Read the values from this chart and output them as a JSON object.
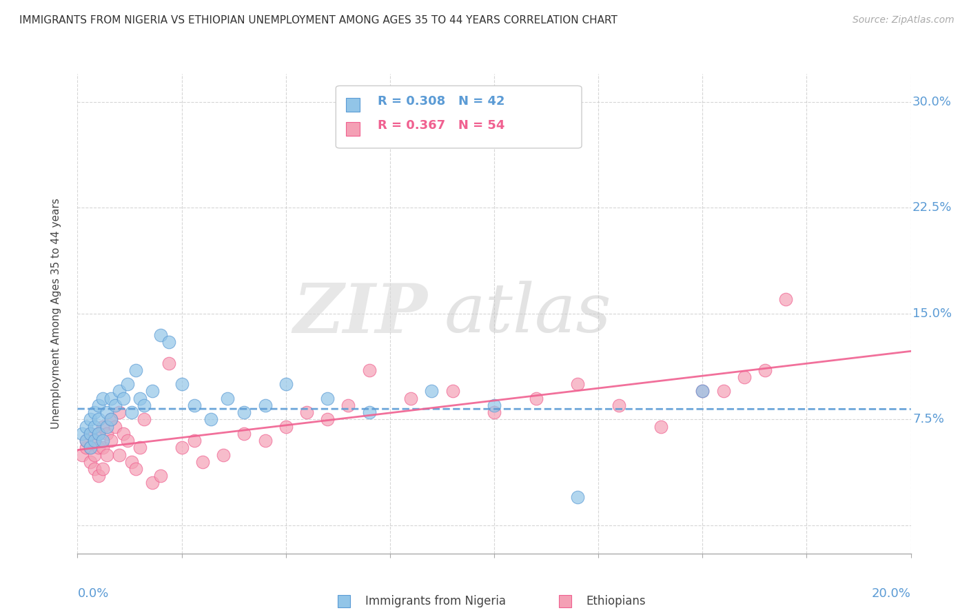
{
  "title": "IMMIGRANTS FROM NIGERIA VS ETHIOPIAN UNEMPLOYMENT AMONG AGES 35 TO 44 YEARS CORRELATION CHART",
  "source": "Source: ZipAtlas.com",
  "ylabel": "Unemployment Among Ages 35 to 44 years",
  "xlim": [
    0.0,
    0.2
  ],
  "ylim": [
    -0.02,
    0.32
  ],
  "yticks": [
    0.0,
    0.075,
    0.15,
    0.225,
    0.3
  ],
  "ytick_labels": [
    "",
    "7.5%",
    "15.0%",
    "22.5%",
    "30.0%"
  ],
  "legend_R_nigeria": "R = 0.308",
  "legend_N_nigeria": "N = 42",
  "legend_R_ethiopian": "R = 0.367",
  "legend_N_ethiopian": "N = 54",
  "nigeria_color": "#92C5E8",
  "ethiopian_color": "#F4A0B5",
  "nigeria_line_color": "#5B9BD5",
  "ethiopian_line_color": "#F06090",
  "nigeria_x": [
    0.001,
    0.002,
    0.002,
    0.003,
    0.003,
    0.003,
    0.004,
    0.004,
    0.004,
    0.005,
    0.005,
    0.005,
    0.006,
    0.006,
    0.007,
    0.007,
    0.008,
    0.008,
    0.009,
    0.01,
    0.011,
    0.012,
    0.013,
    0.014,
    0.015,
    0.016,
    0.018,
    0.02,
    0.022,
    0.025,
    0.028,
    0.032,
    0.036,
    0.04,
    0.045,
    0.05,
    0.06,
    0.07,
    0.085,
    0.1,
    0.12,
    0.15
  ],
  "nigeria_y": [
    0.065,
    0.06,
    0.07,
    0.055,
    0.065,
    0.075,
    0.06,
    0.07,
    0.08,
    0.065,
    0.075,
    0.085,
    0.06,
    0.09,
    0.07,
    0.08,
    0.075,
    0.09,
    0.085,
    0.095,
    0.09,
    0.1,
    0.08,
    0.11,
    0.09,
    0.085,
    0.095,
    0.135,
    0.13,
    0.1,
    0.085,
    0.075,
    0.09,
    0.08,
    0.085,
    0.1,
    0.09,
    0.08,
    0.095,
    0.085,
    0.02,
    0.095
  ],
  "ethiopian_x": [
    0.001,
    0.002,
    0.002,
    0.003,
    0.003,
    0.003,
    0.004,
    0.004,
    0.004,
    0.005,
    0.005,
    0.005,
    0.006,
    0.006,
    0.006,
    0.007,
    0.007,
    0.008,
    0.008,
    0.009,
    0.01,
    0.01,
    0.011,
    0.012,
    0.013,
    0.014,
    0.015,
    0.016,
    0.018,
    0.02,
    0.022,
    0.025,
    0.028,
    0.03,
    0.035,
    0.04,
    0.045,
    0.05,
    0.055,
    0.06,
    0.065,
    0.07,
    0.08,
    0.09,
    0.1,
    0.11,
    0.12,
    0.13,
    0.14,
    0.15,
    0.155,
    0.16,
    0.165,
    0.17
  ],
  "ethiopian_y": [
    0.05,
    0.055,
    0.06,
    0.045,
    0.055,
    0.065,
    0.05,
    0.06,
    0.04,
    0.055,
    0.035,
    0.065,
    0.04,
    0.055,
    0.07,
    0.05,
    0.065,
    0.075,
    0.06,
    0.07,
    0.05,
    0.08,
    0.065,
    0.06,
    0.045,
    0.04,
    0.055,
    0.075,
    0.03,
    0.035,
    0.115,
    0.055,
    0.06,
    0.045,
    0.05,
    0.065,
    0.06,
    0.07,
    0.08,
    0.075,
    0.085,
    0.11,
    0.09,
    0.095,
    0.08,
    0.09,
    0.1,
    0.085,
    0.07,
    0.095,
    0.095,
    0.105,
    0.11,
    0.16
  ],
  "watermark_zip": "ZIP",
  "watermark_atlas": "atlas",
  "background_color": "#FFFFFF",
  "grid_color": "#CCCCCC"
}
